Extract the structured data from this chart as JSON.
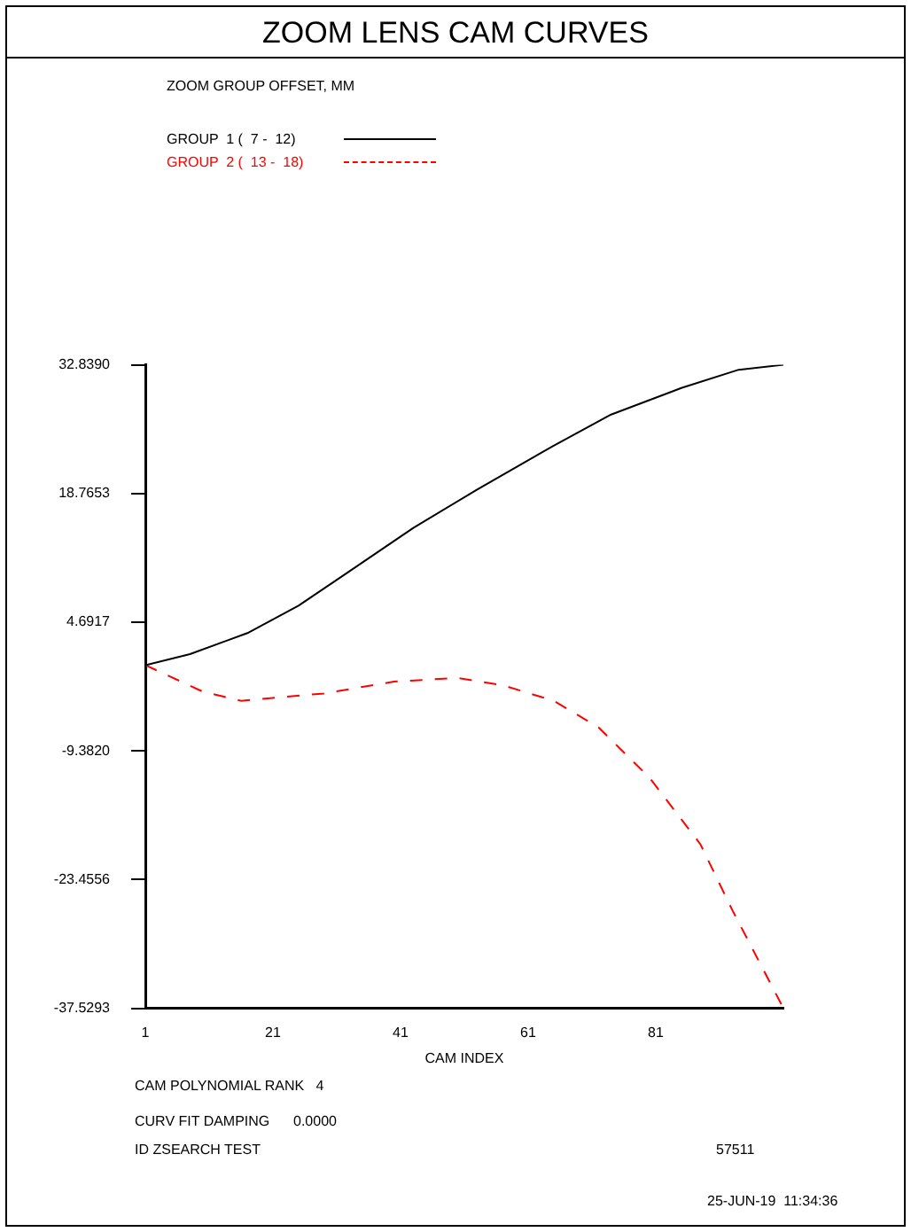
{
  "chart_data": {
    "type": "line",
    "title": "ZOOM LENS CAM CURVES",
    "xlabel": "CAM INDEX",
    "xlim": [
      1,
      101
    ],
    "xticks": [
      1,
      21,
      41,
      61,
      81
    ],
    "ylim": [
      -37.5293,
      32.839
    ],
    "yticks": [
      {
        "value": -37.5293,
        "label": "-37.5293"
      },
      {
        "value": -23.4556,
        "label": "-23.4556"
      },
      {
        "value": -9.382,
        "label": "-9.3820"
      },
      {
        "value": 4.6917,
        "label": "4.6917"
      },
      {
        "value": 18.7653,
        "label": "18.7653"
      },
      {
        "value": 32.839,
        "label": "32.8390"
      }
    ],
    "grid": false,
    "legend": "top left",
    "marker": "none",
    "series": [
      {
        "name": "GROUP  1 (  7 -  12)",
        "color": "#000000",
        "line_style": "solid",
        "x": [
          1,
          8,
          17,
          25,
          32,
          43,
          53,
          65,
          74,
          85,
          94,
          101
        ],
        "values": [
          0,
          1.2,
          3.5,
          6.5,
          9.8,
          15,
          19.2,
          24,
          27.4,
          30.3,
          32.3,
          32.839
        ]
      },
      {
        "name": "GROUP  2 (  13 -  18)",
        "color": "#ff0000",
        "line_style": "dashed",
        "x": [
          1,
          10,
          16,
          29,
          40,
          50,
          57,
          65,
          72,
          80,
          88,
          93,
          101
        ],
        "values": [
          0,
          -2.9,
          -3.9,
          -3.1,
          -1.8,
          -1.4,
          -2.2,
          -3.9,
          -6.8,
          -12.3,
          -19.6,
          -26.8,
          -37.5293
        ]
      }
    ],
    "annotations": [
      "ZOOM GROUP OFFSET, MM",
      "CAM POLYNOMIAL RANK   4",
      "CURV FIT DAMPING      0.0000",
      "ID ZSEARCH TEST",
      "57511",
      "25-JUN-19  11:34:36"
    ]
  }
}
